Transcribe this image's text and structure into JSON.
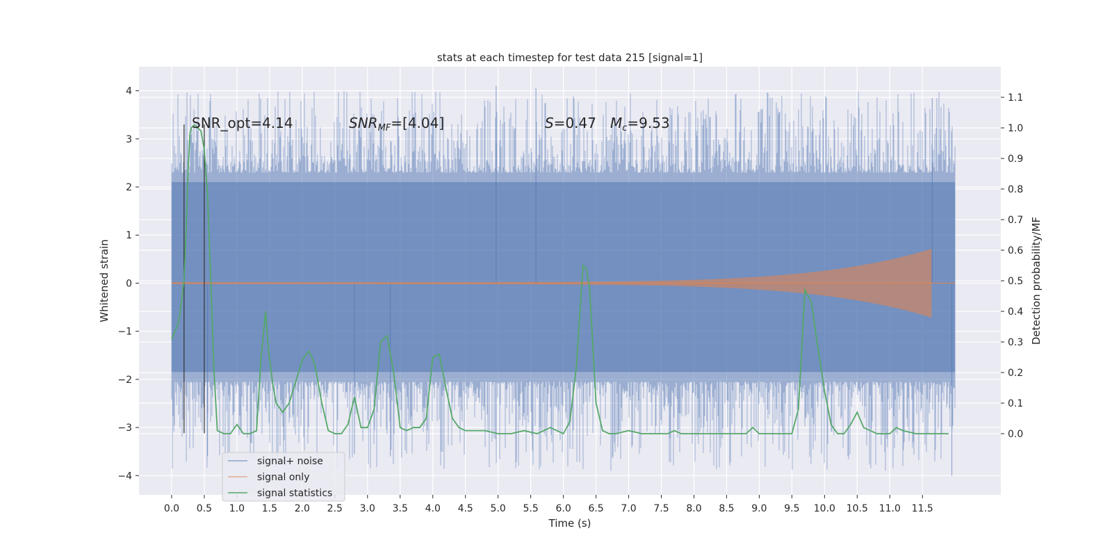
{
  "chart_data": {
    "type": "line",
    "title": "stats at each timestep for test data 215 [signal=1]",
    "xlabel": "Time (s)",
    "ylabel_left": "Whitened strain",
    "ylabel_right": "Detection probability/MF",
    "xlim": [
      -0.5,
      12.7
    ],
    "ylim_left": [
      -4.4,
      4.5
    ],
    "ylim_right": [
      -0.2,
      1.2
    ],
    "grid": true,
    "legend_position": "lower-left",
    "x_ticks": [
      0.0,
      0.5,
      1.0,
      1.5,
      2.0,
      2.5,
      3.0,
      3.5,
      4.0,
      4.5,
      5.0,
      5.5,
      6.0,
      6.5,
      7.0,
      7.5,
      8.0,
      8.5,
      9.0,
      9.5,
      10.0,
      10.5,
      11.0,
      11.5
    ],
    "x_tick_labels": [
      "0.0",
      "0.5",
      "1.0",
      "1.5",
      "2.0",
      "2.5",
      "3.0",
      "3.5",
      "4.0",
      "4.5",
      "5.0",
      "5.5",
      "6.0",
      "6.5",
      "7.0",
      "7.5",
      "8.0",
      "8.5",
      "9.0",
      "9.5",
      "10.0",
      "10.5",
      "11.0",
      "11.5"
    ],
    "y_left_ticks": [
      4,
      3,
      2,
      1,
      0,
      -1,
      -2,
      -3,
      -4
    ],
    "y_left_tick_labels": [
      "4",
      "3",
      "2",
      "1",
      "0",
      "−1",
      "−2",
      "−3",
      "−4"
    ],
    "y_right_ticks": [
      1.1,
      1.0,
      0.9,
      0.8,
      0.7,
      0.6,
      0.5,
      0.4,
      0.3,
      0.2,
      0.1,
      0.0
    ],
    "y_right_tick_labels": [
      "1.1",
      "1.0",
      "0.9",
      "0.8",
      "0.7",
      "0.6",
      "0.5",
      "0.4",
      "0.3",
      "0.2",
      "0.1",
      "0.0"
    ],
    "annotations": {
      "snr_opt": "SNR_opt=4.14",
      "snr_mf": "SNR",
      "snr_mf_sub": "MF",
      "snr_mf_value": "=[4.04]",
      "s_label": "S",
      "s_value": "=0.47",
      "mc_label": "M",
      "mc_sub": "c",
      "mc_value": "=9.53"
    },
    "markers_x": [
      0.19,
      0.5
    ],
    "series": [
      {
        "name": "signal+ noise",
        "color": "#4c72b0",
        "x_range": [
          0.0,
          12.0
        ],
        "band_core": [
          -1.85,
          2.1
        ],
        "peak_max": 4.1,
        "peak_min": -4.0
      },
      {
        "name": "signal only",
        "color": "#dd8452",
        "x_range": [
          0.0,
          12.0
        ],
        "chirp_end_time": 11.65,
        "chirp_end_amplitude": 0.7
      },
      {
        "name": "signal statistics",
        "color": "#55a868",
        "axis": "right",
        "x": [
          0.0,
          0.1,
          0.13,
          0.19,
          0.22,
          0.25,
          0.28,
          0.3,
          0.35,
          0.4,
          0.45,
          0.5,
          0.55,
          0.6,
          0.65,
          0.7,
          0.8,
          0.9,
          1.0,
          1.1,
          1.2,
          1.3,
          1.37,
          1.44,
          1.48,
          1.55,
          1.6,
          1.7,
          1.8,
          1.9,
          2.0,
          2.1,
          2.15,
          2.2,
          2.3,
          2.4,
          2.5,
          2.6,
          2.7,
          2.8,
          2.9,
          3.0,
          3.1,
          3.2,
          3.3,
          3.4,
          3.5,
          3.6,
          3.7,
          3.8,
          3.9,
          4.0,
          4.1,
          4.2,
          4.3,
          4.4,
          4.5,
          4.6,
          4.8,
          5.0,
          5.2,
          5.4,
          5.6,
          5.8,
          6.0,
          6.1,
          6.2,
          6.3,
          6.35,
          6.4,
          6.5,
          6.6,
          6.7,
          6.8,
          7.0,
          7.2,
          7.5,
          7.6,
          7.7,
          7.8,
          8.0,
          8.5,
          8.8,
          8.9,
          9.0,
          9.2,
          9.5,
          9.6,
          9.7,
          9.75,
          9.8,
          9.85,
          9.9,
          10.0,
          10.1,
          10.2,
          10.3,
          10.4,
          10.5,
          10.6,
          10.8,
          11.0,
          11.1,
          11.2,
          11.4,
          11.6,
          11.8,
          11.9
        ],
        "y": [
          0.31,
          0.36,
          0.4,
          0.5,
          0.65,
          0.85,
          0.98,
          1.0,
          1.01,
          1.0,
          0.99,
          0.93,
          0.78,
          0.5,
          0.2,
          0.01,
          0.0,
          0.0,
          0.03,
          0.0,
          0.0,
          0.01,
          0.25,
          0.4,
          0.28,
          0.16,
          0.1,
          0.07,
          0.1,
          0.17,
          0.24,
          0.27,
          0.25,
          0.22,
          0.1,
          0.01,
          0.0,
          0.0,
          0.03,
          0.12,
          0.02,
          0.02,
          0.08,
          0.3,
          0.32,
          0.2,
          0.02,
          0.01,
          0.02,
          0.02,
          0.05,
          0.25,
          0.26,
          0.15,
          0.05,
          0.02,
          0.01,
          0.01,
          0.01,
          0.0,
          0.0,
          0.01,
          0.0,
          0.02,
          0.0,
          0.04,
          0.22,
          0.55,
          0.54,
          0.48,
          0.1,
          0.01,
          0.0,
          0.0,
          0.01,
          0.0,
          0.0,
          0.0,
          0.01,
          0.0,
          0.0,
          0.0,
          0.0,
          0.02,
          0.0,
          0.0,
          0.0,
          0.08,
          0.47,
          0.45,
          0.43,
          0.35,
          0.28,
          0.14,
          0.03,
          0.0,
          0.0,
          0.03,
          0.07,
          0.02,
          0.0,
          0.0,
          0.02,
          0.01,
          0.0,
          0.0,
          0.0,
          0.0
        ]
      }
    ]
  }
}
